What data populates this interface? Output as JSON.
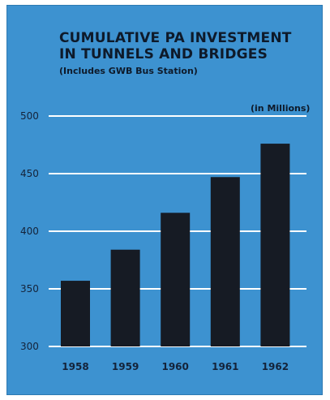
{
  "chart_data": {
    "type": "bar",
    "title_line1": "CUMULATIVE PA INVESTMENT",
    "title_line2": "IN TUNNELS AND BRIDGES",
    "subtitle": "(Includes GWB Bus Station)",
    "units_label": "(in Millions)",
    "categories": [
      "1958",
      "1959",
      "1960",
      "1961",
      "1962"
    ],
    "values": [
      357,
      384,
      416,
      447,
      476
    ],
    "ylim": [
      300,
      500
    ],
    "yticks": [
      300,
      350,
      400,
      450,
      500
    ],
    "grid": true,
    "colors": {
      "background": "#3d92d0",
      "bars": "#161b24",
      "gridlines": "#ffffff"
    }
  }
}
